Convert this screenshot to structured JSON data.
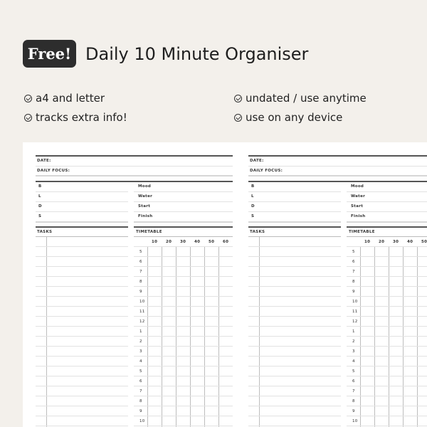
{
  "header": {
    "badge": "Free!",
    "title": "Daily 10 Minute Organiser"
  },
  "features": [
    "a4 and letter",
    "undated / use anytime",
    "tracks extra info!",
    "use on any device"
  ],
  "feature_icon": "check-circle-icon",
  "planner": {
    "date_label": "DATE:",
    "focus_label": "DAILY FOCUS:",
    "meals": [
      "B",
      "L",
      "D",
      "S"
    ],
    "trackers": [
      "Mood",
      "Water",
      "Start",
      "Finish"
    ],
    "tasks_label": "TASKS",
    "timetable_label": "TIMETABLE",
    "minutes": [
      "10",
      "20",
      "30",
      "40",
      "50",
      "60"
    ],
    "hours": [
      "5",
      "6",
      "7",
      "8",
      "9",
      "10",
      "11",
      "12",
      "1",
      "2",
      "3",
      "4",
      "5",
      "6",
      "7",
      "8",
      "9",
      "10"
    ]
  }
}
